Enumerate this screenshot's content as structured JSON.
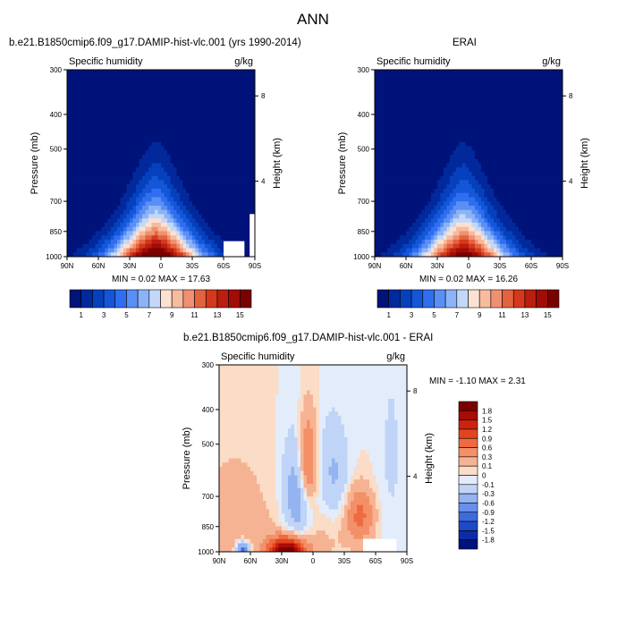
{
  "figure": {
    "title": "ANN",
    "panel_a_title": "b.e21.B1850cmip6.f09_g17.DAMIP-hist-vlc.001 (yrs 1990-2014)",
    "panel_b_title": "ERAI",
    "panel_c_title": "b.e21.B1850cmip6.f09_g17.DAMIP-hist-vlc.001 - ERAI",
    "field_label": "Specific humidity",
    "units": "g/kg"
  },
  "chart_data": [
    {
      "id": "model",
      "type": "heatmap",
      "subtype": "latitude-pressure contour (filled)",
      "title": "b.e21.B1850cmip6.f09_g17.DAMIP-hist-vlc.001 (yrs 1990-2014)",
      "left_label": "Specific humidity",
      "right_label": "g/kg",
      "xlabel": "",
      "ylabel": "Pressure (mb)",
      "y2label": "Height (km)",
      "x_ticks": [
        "90N",
        "60N",
        "30N",
        "0",
        "30S",
        "60S",
        "90S"
      ],
      "y_ticks": [
        "300",
        "400",
        "500",
        "700",
        "850",
        "1000"
      ],
      "y2_ticks": [
        "8",
        "4"
      ],
      "y_scale": "log",
      "ylim": [
        1000,
        300
      ],
      "xlim": [
        90,
        -90
      ],
      "stats_text": "MIN =   0.02   MAX =  17.63",
      "min": 0.02,
      "max": 17.63,
      "peak_latitude": 5,
      "peak_pressure": 1000,
      "missing_region": "below ground near 60S-80S, 1000-900 mb and 85S-90S",
      "colorbar_ticks": [
        "1",
        "3",
        "5",
        "7",
        "9",
        "11",
        "13",
        "15"
      ],
      "colorbar_levels": [
        1,
        2,
        3,
        4,
        5,
        6,
        7,
        8,
        9,
        10,
        11,
        12,
        13,
        14,
        15
      ]
    },
    {
      "id": "obs",
      "type": "heatmap",
      "subtype": "latitude-pressure contour (filled)",
      "title": "ERAI",
      "left_label": "Specific humidity",
      "right_label": "g/kg",
      "ylabel": "Pressure (mb)",
      "y2label": "Height (km)",
      "x_ticks": [
        "90N",
        "60N",
        "30N",
        "0",
        "30S",
        "60S",
        "90S"
      ],
      "y_ticks": [
        "300",
        "400",
        "500",
        "700",
        "850",
        "1000"
      ],
      "y2_ticks": [
        "8",
        "4"
      ],
      "y_scale": "log",
      "ylim": [
        1000,
        300
      ],
      "xlim": [
        90,
        -90
      ],
      "stats_text": "MIN =   0.02   MAX =  16.26",
      "min": 0.02,
      "max": 16.26,
      "peak_latitude": 5,
      "peak_pressure": 1000,
      "colorbar_ticks": [
        "1",
        "3",
        "5",
        "7",
        "9",
        "11",
        "13",
        "15"
      ],
      "colorbar_levels": [
        1,
        2,
        3,
        4,
        5,
        6,
        7,
        8,
        9,
        10,
        11,
        12,
        13,
        14,
        15
      ]
    },
    {
      "id": "diff",
      "type": "heatmap",
      "subtype": "latitude-pressure contour (filled difference)",
      "title": "b.e21.B1850cmip6.f09_g17.DAMIP-hist-vlc.001 - ERAI",
      "left_label": "Specific humidity",
      "right_label": "g/kg",
      "ylabel": "Pressure (mb)",
      "y2label": "Height (km)",
      "x_ticks": [
        "90N",
        "60N",
        "30N",
        "0",
        "30S",
        "60S",
        "90S"
      ],
      "y_ticks": [
        "300",
        "400",
        "500",
        "700",
        "850",
        "1000"
      ],
      "y2_ticks": [
        "8",
        "4"
      ],
      "y_scale": "log",
      "ylim": [
        1000,
        300
      ],
      "xlim": [
        90,
        -90
      ],
      "stats_text": "MIN =  -1.10   MAX =   2.31",
      "min": -1.1,
      "max": 2.31,
      "features": [
        {
          "sign": "positive",
          "lat": 25,
          "p": 1000,
          "value": 2.0
        },
        {
          "sign": "negative",
          "lat": 15,
          "p": 750,
          "value": -0.6
        },
        {
          "sign": "positive",
          "lat": 5,
          "p": 550,
          "value": 0.8
        },
        {
          "sign": "positive",
          "lat": -45,
          "p": 780,
          "value": 0.7
        },
        {
          "sign": "negative",
          "lat": -20,
          "p": 650,
          "value": -0.3
        },
        {
          "sign": "negative",
          "lat": 67,
          "p": 985,
          "value": -1.1
        }
      ],
      "colorbar_labels": [
        "1.8",
        "1.5",
        "1.2",
        "0.9",
        "0.6",
        "0.3",
        "0.1",
        "0",
        "-0.1",
        "-0.3",
        "-0.6",
        "-0.9",
        "-1.2",
        "-1.5",
        "-1.8"
      ]
    }
  ],
  "colors": {
    "seq": [
      "#00137a",
      "#02299b",
      "#0541bd",
      "#1456d8",
      "#2f6eef",
      "#5a8ff5",
      "#8db3f7",
      "#c3d8f8",
      "#fbe1d2",
      "#f7bba0",
      "#f19070",
      "#e4633f",
      "#d4381d",
      "#bb1d0f",
      "#a00c06",
      "#7b0000"
    ],
    "div": [
      "#7b0000",
      "#a80c06",
      "#cc220f",
      "#e2441f",
      "#ef6a40",
      "#f39068",
      "#f6b393",
      "#fbdcc6",
      "#e3ecfa",
      "#bfd4f6",
      "#93b4f1",
      "#6890ea",
      "#3d6bde",
      "#1d4bc8",
      "#0a2ca6",
      "#00137a"
    ]
  }
}
